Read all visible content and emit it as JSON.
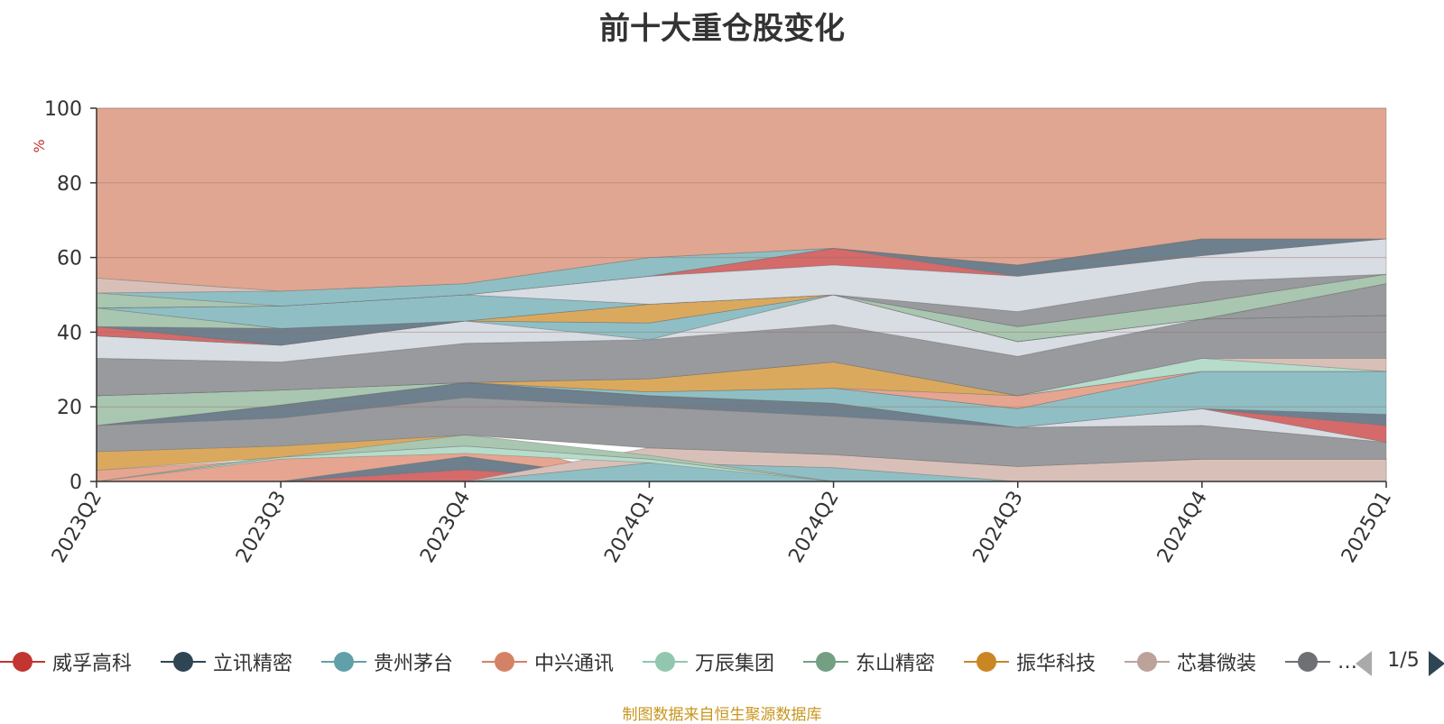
{
  "title": "前十大重仓股变化",
  "source_note": "制图数据来自恒生聚源数据库",
  "pager": {
    "text": "1/5"
  },
  "legend": [
    {
      "name": "威孚高科",
      "color": "#c23531"
    },
    {
      "name": "立讯精密",
      "color": "#2f4554"
    },
    {
      "name": "贵州茅台",
      "color": "#61a0a8"
    },
    {
      "name": "中兴通讯",
      "color": "#d48265"
    },
    {
      "name": "万辰集团",
      "color": "#91c7ae"
    },
    {
      "name": "东山精密",
      "color": "#749f83"
    },
    {
      "name": "振华科技",
      "color": "#ca8622"
    },
    {
      "name": "芯碁微装",
      "color": "#bda29a"
    },
    {
      "name": "…",
      "color": "#6e7074"
    }
  ],
  "chart_data": {
    "type": "area",
    "title": "前十大重仓股变化",
    "ylabel": "%",
    "ylim": [
      0,
      100
    ],
    "yticks": [
      "0",
      "20",
      "40",
      "60",
      "80",
      "100"
    ],
    "categories": [
      "2023Q2",
      "2023Q3",
      "2023Q4",
      "2024Q1",
      "2024Q2",
      "2024Q3",
      "2024Q4",
      "2025Q1"
    ],
    "stacked": true,
    "grid": true,
    "layers": [
      {
        "color": "#e6a590",
        "lower": [
          0,
          0,
          6.7,
          0,
          0,
          0,
          0,
          0
        ],
        "upper": [
          3,
          6,
          12.5,
          0,
          0,
          0,
          0,
          0
        ]
      },
      {
        "color": "#d46a6a",
        "lower": [
          0,
          0,
          0,
          0,
          0,
          0,
          0,
          0
        ],
        "upper": [
          0,
          0,
          3.2,
          0,
          0,
          0,
          0,
          0
        ]
      },
      {
        "color": "#6e7f8d",
        "lower": [
          0,
          0,
          3.2,
          0,
          0,
          0,
          0,
          0
        ],
        "upper": [
          0,
          0,
          6.7,
          0,
          0,
          0,
          6,
          6
        ]
      },
      {
        "color": "#8fbfc4",
        "lower": [
          0,
          0,
          0,
          0,
          0,
          0,
          0,
          0
        ],
        "upper": [
          0,
          0,
          0,
          5,
          3.7,
          0,
          0,
          0
        ]
      },
      {
        "color": "#d8c0b8",
        "lower": [
          0,
          0,
          0,
          5,
          3.7,
          0,
          0,
          0
        ],
        "upper": [
          0,
          0,
          0,
          9,
          7.2,
          4,
          6,
          6
        ]
      },
      {
        "color": "#b6dccb",
        "lower": [
          0,
          6,
          7.5,
          5,
          0,
          0,
          0,
          0
        ],
        "upper": [
          0,
          6.5,
          9.5,
          6,
          0,
          0,
          0,
          0
        ]
      },
      {
        "color": "#a9c6b0",
        "lower": [
          0,
          6.5,
          9.5,
          6,
          0,
          0,
          0,
          0
        ],
        "upper": [
          0,
          7,
          12.5,
          7,
          0,
          0,
          0,
          0
        ]
      },
      {
        "color": "#dba95e",
        "lower": [
          3,
          6.5,
          12.5,
          9,
          7.2,
          4,
          6,
          6
        ],
        "upper": [
          8,
          9.5,
          12.5,
          9,
          7.2,
          4,
          6,
          6
        ]
      },
      {
        "color": "#999a9d",
        "lower": [
          8,
          9.5,
          12.5,
          9,
          7.2,
          4,
          6,
          6
        ],
        "upper": [
          15,
          17,
          22.5,
          20,
          17.5,
          14.5,
          15,
          10.5
        ]
      },
      {
        "color": "#6e7f8d",
        "lower": [
          15,
          17,
          22.5,
          20,
          17.5,
          14.5,
          15,
          10.5
        ],
        "upper": [
          15,
          20.5,
          26.5,
          23,
          21,
          14.5,
          15,
          10.5
        ]
      },
      {
        "color": "#d8dce3",
        "lower": [
          15,
          20.5,
          26.5,
          23,
          21,
          14.5,
          15,
          10.5
        ],
        "upper": [
          15,
          20.5,
          26.5,
          23,
          21,
          14.5,
          19.5,
          10.5
        ]
      },
      {
        "color": "#d46a6a",
        "lower": [
          15,
          20.5,
          26.5,
          23,
          21,
          14.5,
          19.5,
          10.5
        ],
        "upper": [
          15,
          20.5,
          26.5,
          23,
          21,
          14.5,
          19.5,
          15
        ]
      },
      {
        "color": "#6e7f8d",
        "lower": [
          15,
          20.5,
          26.5,
          23,
          21,
          14.5,
          19.5,
          15
        ],
        "upper": [
          15,
          20.5,
          26.5,
          23,
          21,
          14.5,
          19.5,
          18
        ]
      },
      {
        "color": "#8fbfc4",
        "lower": [
          15,
          20.5,
          26.5,
          23,
          21,
          14.5,
          19.5,
          18
        ],
        "upper": [
          15,
          20.5,
          26.5,
          24,
          25,
          19.5,
          29.5,
          29.5
        ]
      },
      {
        "color": "#a9c6b0",
        "lower": [
          15,
          20.5,
          26.5,
          24,
          25,
          19.5,
          29.5,
          29.5
        ],
        "upper": [
          23,
          24.5,
          26.5,
          24,
          25,
          19.5,
          29.5,
          29.5
        ]
      },
      {
        "color": "#e6a590",
        "lower": [
          23,
          24.5,
          26.5,
          24,
          25,
          19.5,
          29.5,
          29.5
        ],
        "upper": [
          23,
          24.5,
          26.5,
          24,
          25,
          23,
          29.5,
          29.5
        ]
      },
      {
        "color": "#dba95e",
        "lower": [
          23,
          24.5,
          26.5,
          24,
          25,
          23,
          29.5,
          29.5
        ],
        "upper": [
          23,
          24.5,
          26.5,
          27.5,
          32,
          23,
          29.5,
          29.5
        ]
      },
      {
        "color": "#b6dccb",
        "lower": [
          23,
          24.5,
          26.5,
          27.5,
          32,
          23,
          29.5,
          29.5
        ],
        "upper": [
          23,
          24.5,
          26.5,
          27.5,
          32,
          23,
          33,
          29.5
        ]
      },
      {
        "color": "#d8c0b8",
        "lower": [
          23,
          24.5,
          26.5,
          27.5,
          32,
          23,
          33,
          29.5
        ],
        "upper": [
          23,
          24.5,
          26.5,
          27.5,
          32,
          23,
          33,
          33
        ]
      },
      {
        "color": "#999a9d",
        "lower": [
          23,
          24.5,
          26.5,
          27.5,
          32,
          23,
          33,
          33
        ],
        "upper": [
          33,
          32,
          37,
          38,
          42,
          33.5,
          43.5,
          44.5
        ]
      },
      {
        "color": "#d8dce3",
        "lower": [
          33,
          32,
          37,
          38,
          42,
          33.5,
          43.5,
          44.5
        ],
        "upper": [
          39,
          36.5,
          43,
          38,
          50,
          37.5,
          43.5,
          44.5
        ]
      },
      {
        "color": "#8fbfc4",
        "lower": [
          39,
          36.5,
          43,
          38,
          50,
          37.5,
          43.5,
          44.5
        ],
        "upper": [
          39,
          36.5,
          43,
          42.5,
          50,
          37.5,
          43.5,
          44.5
        ]
      },
      {
        "color": "#999a9d",
        "lower": [
          39,
          36.5,
          43,
          42.5,
          50,
          37.5,
          43.5,
          44.5
        ],
        "upper": [
          39,
          36.5,
          43,
          42.5,
          50,
          37.5,
          43.5,
          53
        ]
      },
      {
        "color": "#d46a6a",
        "lower": [
          39,
          36.5,
          43,
          42.5,
          50,
          37.5,
          43.5,
          53
        ],
        "upper": [
          41.5,
          36.5,
          43,
          42.5,
          50,
          37.5,
          43.5,
          53
        ]
      },
      {
        "color": "#dba95e",
        "lower": [
          41.5,
          36.5,
          43,
          42.5,
          50,
          37.5,
          43.5,
          53
        ],
        "upper": [
          41.5,
          36.5,
          43,
          47.5,
          50,
          37.5,
          43.5,
          53
        ]
      },
      {
        "color": "#6e7f8d",
        "lower": [
          41.5,
          36.5,
          43,
          47.5,
          50,
          37.5,
          43.5,
          53
        ],
        "upper": [
          41.5,
          41,
          43,
          47.5,
          50,
          37.5,
          43.5,
          53
        ]
      },
      {
        "color": "#a9c6b0",
        "lower": [
          41.5,
          41,
          43,
          47.5,
          50,
          37.5,
          43.5,
          53
        ],
        "upper": [
          46.5,
          41,
          43,
          47.5,
          50,
          41.5,
          48,
          55.5
        ]
      },
      {
        "color": "#e6a590",
        "lower": [
          46.5,
          41,
          43,
          47.5,
          50,
          41.5,
          48,
          55.5
        ],
        "upper": [
          46.5,
          41,
          43,
          47.5,
          50,
          41.5,
          48,
          55.5
        ]
      },
      {
        "color": "#8fbfc4",
        "lower": [
          46.5,
          41,
          43,
          47.5,
          50,
          41.5,
          48,
          55.5
        ],
        "upper": [
          46.5,
          47,
          50,
          47.5,
          50,
          41.5,
          48,
          55.5
        ]
      },
      {
        "color": "#999a9d",
        "lower": [
          46.5,
          47,
          50,
          47.5,
          50,
          41.5,
          48,
          55.5
        ],
        "upper": [
          46.5,
          47,
          50,
          47.5,
          50,
          45.5,
          53.5,
          55.5
        ]
      },
      {
        "color": "#d8dce3",
        "lower": [
          46.5,
          47,
          50,
          47.5,
          50,
          45.5,
          53.5,
          55.5
        ],
        "upper": [
          46.5,
          47,
          50,
          55,
          58,
          55,
          60.5,
          65
        ]
      },
      {
        "color": "#d46a6a",
        "lower": [
          46.5,
          47,
          50,
          55,
          58,
          55,
          60.5,
          65
        ],
        "upper": [
          46.5,
          47,
          50,
          55,
          62.5,
          55,
          60.5,
          65
        ]
      },
      {
        "color": "#6e7f8d",
        "lower": [
          46.5,
          47,
          50,
          55,
          62.5,
          55,
          60.5,
          65
        ],
        "upper": [
          46.5,
          47,
          50,
          55,
          62.5,
          58,
          65,
          65
        ]
      },
      {
        "color": "#a9c6b0",
        "lower": [
          46.5,
          47,
          50,
          55,
          62.5,
          58,
          65,
          65
        ],
        "upper": [
          50.5,
          47,
          50,
          55,
          62.5,
          58,
          65,
          65
        ]
      },
      {
        "color": "#8fbfc4",
        "lower": [
          50.5,
          47,
          50,
          55,
          62.5,
          58,
          65,
          65
        ],
        "upper": [
          50.5,
          51,
          53,
          60,
          62.5,
          58,
          65,
          65
        ]
      },
      {
        "color": "#d8c0b8",
        "lower": [
          50.5,
          51,
          53,
          60,
          62.5,
          58,
          65,
          65
        ],
        "upper": [
          54.5,
          51,
          53,
          60,
          62.5,
          58,
          65,
          65
        ]
      },
      {
        "color": "#e0a691",
        "lower": [
          54.5,
          51,
          53,
          60,
          62.5,
          58,
          65,
          65
        ],
        "upper": [
          100,
          100,
          100,
          100,
          100,
          100,
          100,
          100
        ]
      }
    ]
  }
}
